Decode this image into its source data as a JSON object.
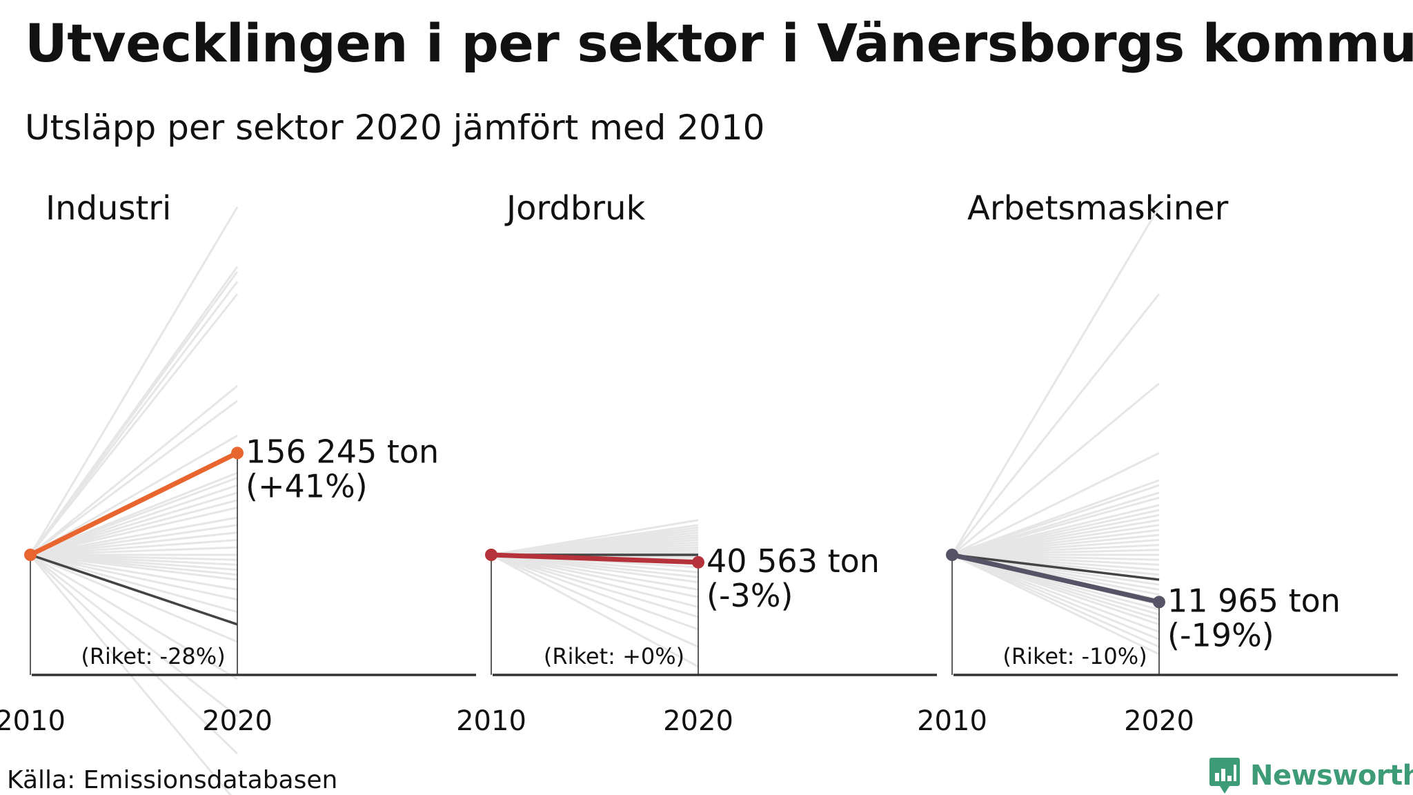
{
  "title": "Utvecklingen i per sektor i Vänersborgs kommun",
  "subtitle": "Utsläpp per sektor 2020 jämfört med 2010",
  "source": "Källa: Emissionsdatabasen",
  "brand": {
    "name": "Newsworthy",
    "color": "#3e9b78",
    "icon": "bar-chart-badge-icon"
  },
  "colors": {
    "background_lines": "#e6e6e6",
    "national": "#444444",
    "axis": "#333333"
  },
  "chart_data": [
    {
      "type": "line",
      "title": "Industri",
      "x": [
        "2010",
        "2020"
      ],
      "ylim": [
        -100,
        140
      ],
      "highlight": {
        "name": "Vänersborg",
        "color": "#e8652f",
        "values": [
          0,
          41
        ]
      },
      "label_value": "156 245 ton",
      "label_change": "(+41%)",
      "national": {
        "values": [
          0,
          -28
        ],
        "label": "(Riket: -28%)"
      },
      "other_municipalities_change": [
        140,
        116,
        114,
        110,
        105,
        68,
        62,
        48,
        33,
        31,
        28,
        25,
        22,
        19,
        15,
        12,
        9,
        6,
        3,
        0,
        -2,
        -4,
        -6,
        -8,
        -10,
        -14,
        -18,
        -23,
        -35,
        -50,
        -65,
        -80,
        -100
      ]
    },
    {
      "type": "line",
      "title": "Jordbruk",
      "x": [
        "2010",
        "2020"
      ],
      "ylim": [
        -100,
        140
      ],
      "highlight": {
        "name": "Vänersborg",
        "color": "#b5323a",
        "values": [
          0,
          -3
        ]
      },
      "label_value": "40 563 ton",
      "label_change": "(-3%)",
      "national": {
        "values": [
          0,
          0
        ],
        "label": "(Riket: +0%)"
      },
      "other_municipalities_change": [
        14,
        12,
        11,
        10,
        9,
        8,
        7,
        6,
        5,
        4,
        3,
        2,
        1,
        0,
        -1,
        -2,
        -3,
        -5,
        -7,
        -9,
        -11,
        -14,
        -17,
        -21,
        -25,
        -30,
        -37,
        -45
      ]
    },
    {
      "type": "line",
      "title": "Arbetsmaskiner",
      "x": [
        "2010",
        "2020"
      ],
      "ylim": [
        -100,
        140
      ],
      "highlight": {
        "name": "Vänersborg",
        "color": "#575366",
        "values": [
          0,
          -19
        ]
      },
      "label_value": "11 965 ton",
      "label_change": "(-19%)",
      "national": {
        "values": [
          0,
          -10
        ],
        "label": "(Riket: -10%)"
      },
      "other_municipalities_change": [
        140,
        105,
        69,
        41,
        30,
        28,
        25,
        23,
        20,
        18,
        16,
        14,
        12,
        10,
        8,
        6,
        4,
        2,
        0,
        -2,
        -4,
        -6,
        -8,
        -10,
        -12,
        -14,
        -16,
        -18,
        -20,
        -22,
        -24,
        -26,
        -28,
        -31,
        -34,
        -37,
        -40
      ]
    }
  ]
}
